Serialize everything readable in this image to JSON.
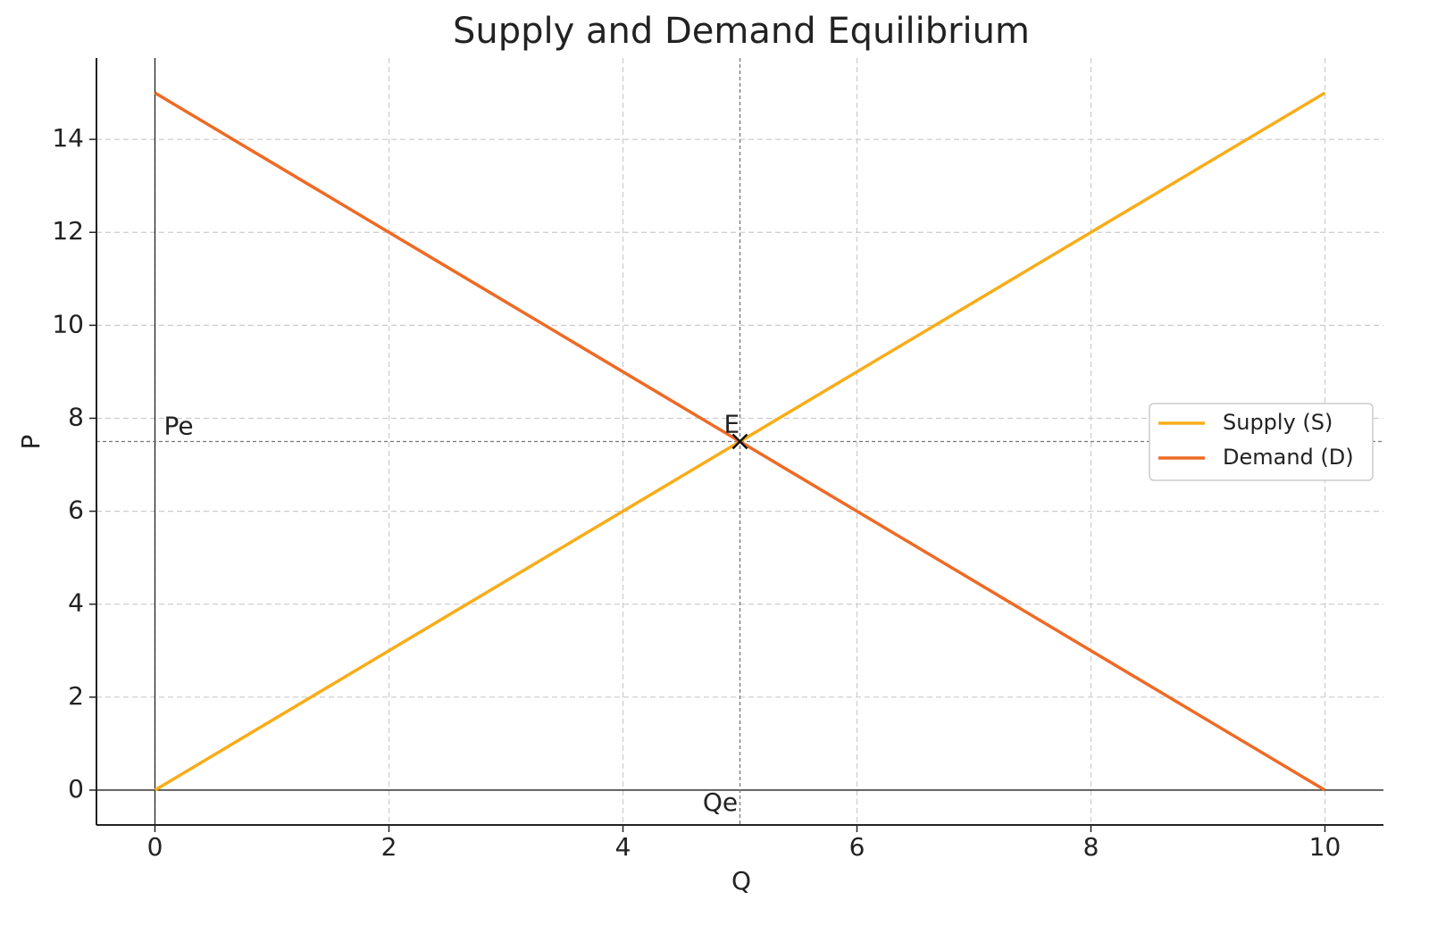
{
  "chart_data": {
    "type": "line",
    "title": "Supply and Demand Equilibrium",
    "x_label": "Q",
    "y_label": "P",
    "x": [
      0,
      10
    ],
    "series": [
      {
        "name": "Supply (S)",
        "color": "#f7ad19",
        "values": [
          0,
          15
        ]
      },
      {
        "name": "Demand (D)",
        "color": "#ee6a25",
        "values": [
          15,
          0
        ]
      }
    ],
    "equilibrium": {
      "x": 5,
      "y": 7.5,
      "label": "E"
    },
    "price_label": "Pe",
    "quantity_label": "Qe",
    "xlim": [
      -0.5,
      10.5
    ],
    "ylim": [
      -0.75,
      15.75
    ],
    "xticks": [
      0,
      2,
      4,
      6,
      8,
      10
    ],
    "yticks": [
      0,
      2,
      4,
      6,
      8,
      10,
      12,
      14
    ],
    "grid": true,
    "legend": "right"
  }
}
